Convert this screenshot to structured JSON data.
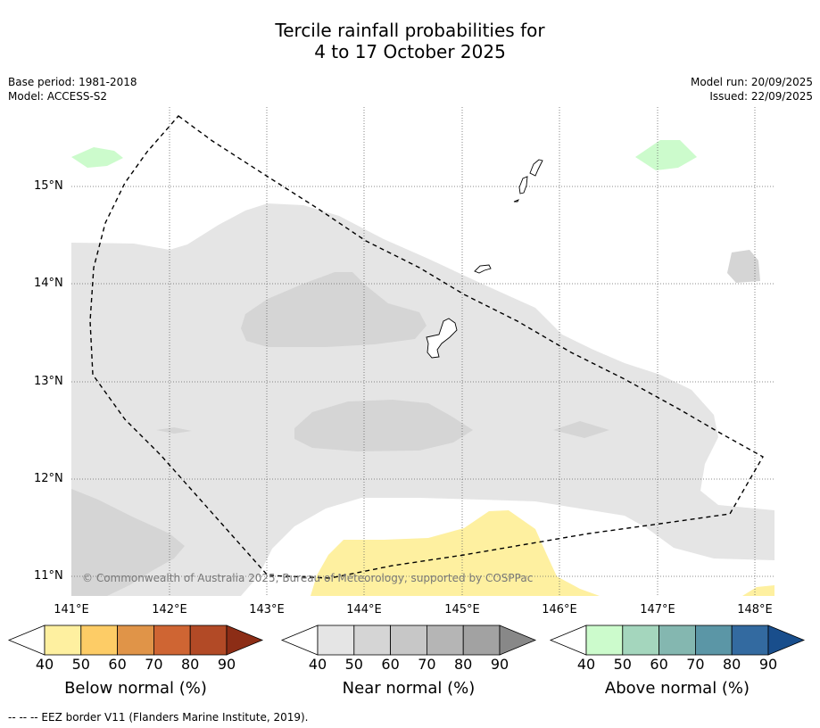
{
  "title": {
    "line1": "Tercile rainfall probabilities for",
    "line2": "4 to 17 October 2025"
  },
  "meta": {
    "base_period": "Base period: 1981-2018",
    "model": "Model: ACCESS-S2",
    "model_run": "Model run: 20/09/2025",
    "issued": "Issued: 22/09/2025"
  },
  "axes": {
    "lat_ticks": [
      "15°N",
      "14°N",
      "13°N",
      "12°N",
      "11°N"
    ],
    "lon_ticks": [
      "141°E",
      "142°E",
      "143°E",
      "144°E",
      "145°E",
      "146°E",
      "147°E",
      "148°E"
    ]
  },
  "copyright": "© Commonwealth of Australia 2025, Bureau of Meteorology, supported by COSPPac",
  "colorbars": [
    {
      "label": "Below normal (%)",
      "ticks": [
        "40",
        "50",
        "60",
        "70",
        "80",
        "90"
      ],
      "colors": [
        "#ffffff",
        "#fef0a0",
        "#fdcc66",
        "#e09448",
        "#cf6533",
        "#b24a26",
        "#8c2d16"
      ]
    },
    {
      "label": "Near normal (%)",
      "ticks": [
        "40",
        "50",
        "60",
        "70",
        "80",
        "90"
      ],
      "colors": [
        "#ffffff",
        "#e5e5e5",
        "#d5d5d5",
        "#c7c7c7",
        "#b5b5b5",
        "#a2a2a2",
        "#888888"
      ]
    },
    {
      "label": "Above normal (%)",
      "ticks": [
        "40",
        "50",
        "60",
        "70",
        "80",
        "90"
      ],
      "colors": [
        "#ffffff",
        "#ccfbcc",
        "#a4d6bd",
        "#84b7b0",
        "#5b96a6",
        "#336aa0",
        "#194e8c"
      ]
    }
  ],
  "footer": "--  --  -- EEZ border V11 (Flanders Marine Institute, 2019)."
}
